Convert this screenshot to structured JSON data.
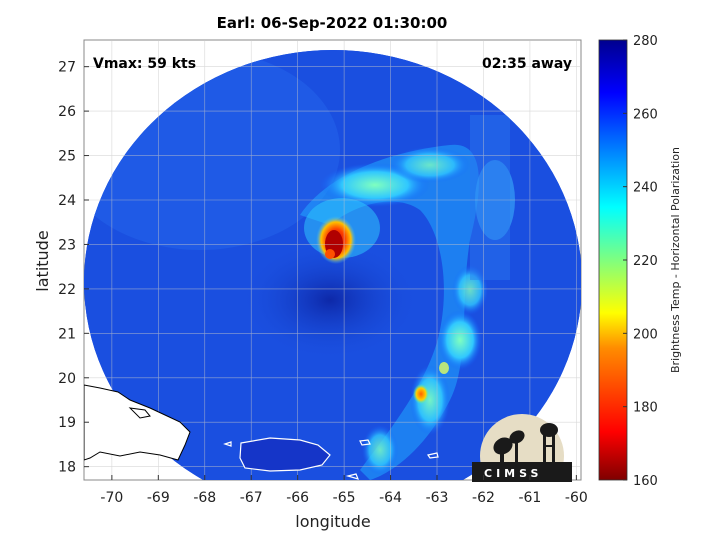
{
  "title": "Earl: 06-Sep-2022 01:30:00",
  "annotations": {
    "vmax": "Vmax: 59 kts",
    "time_away": "02:35 away"
  },
  "axes": {
    "xlabel": "longitude",
    "ylabel": "latitude",
    "xlim": [
      -70.6,
      -59.9
    ],
    "ylim": [
      17.7,
      27.6
    ],
    "xticks": [
      -70,
      -69,
      -68,
      -67,
      -66,
      -65,
      -64,
      -63,
      -62,
      -61,
      -60
    ],
    "yticks": [
      18,
      19,
      20,
      21,
      22,
      23,
      24,
      25,
      26,
      27
    ],
    "grid": true
  },
  "colorbar": {
    "label": "Brightness Temp - Horizontal Polarization",
    "ticks": [
      160,
      180,
      200,
      220,
      240,
      260,
      280
    ],
    "range": [
      160,
      280
    ],
    "colormap": "jet"
  },
  "swath": {
    "center": [
      -65.2,
      22.0
    ],
    "background_temp": 262
  },
  "features": {
    "eye_warm_core": {
      "lon": -65.1,
      "lat": 23.0,
      "temp": 178
    },
    "rainband_hotspot": {
      "lon": -63.3,
      "lat": 19.6,
      "temp": 190
    }
  },
  "logo": {
    "text": "CIMSS"
  },
  "colors": {
    "ocean_background": "#1a4fe0",
    "land_fill": "#1535c8",
    "coastline": "#ffffff"
  }
}
